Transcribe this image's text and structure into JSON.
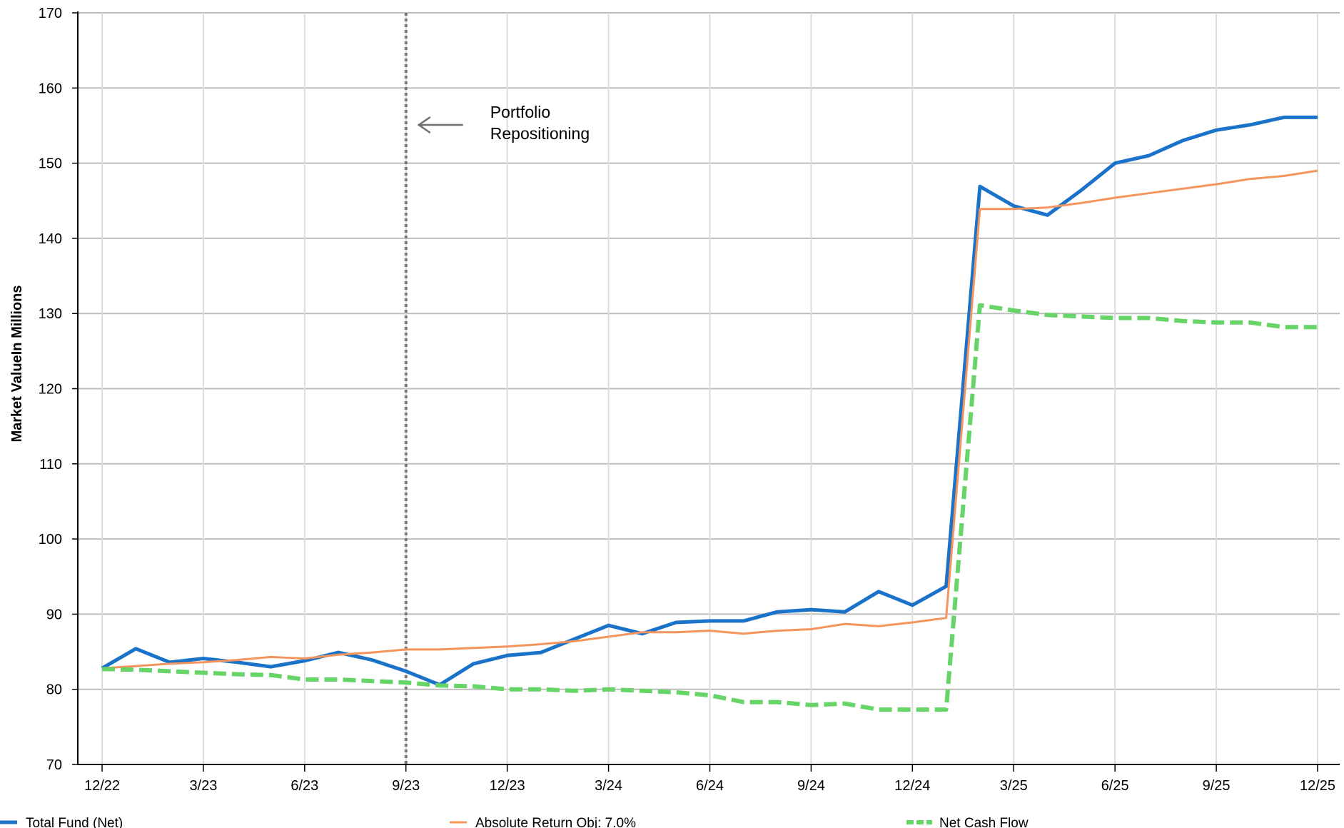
{
  "chart_data": {
    "type": "line",
    "title": "",
    "xlabel": "",
    "ylabel": "Market ValueIn Millions",
    "ylim": [
      70,
      170
    ],
    "yticks": [
      "70",
      "80",
      "90",
      "100",
      "110",
      "120",
      "130",
      "140",
      "150",
      "160",
      "170"
    ],
    "x_count": 37,
    "xtick_labels": [
      {
        "index": 0,
        "label": "12/22"
      },
      {
        "index": 3,
        "label": "3/23"
      },
      {
        "index": 6,
        "label": "6/23"
      },
      {
        "index": 9,
        "label": "9/23"
      },
      {
        "index": 12,
        "label": "12/23"
      },
      {
        "index": 15,
        "label": "3/24"
      },
      {
        "index": 18,
        "label": "6/24"
      },
      {
        "index": 21,
        "label": "9/24"
      },
      {
        "index": 24,
        "label": "12/24"
      },
      {
        "index": 27,
        "label": "3/25"
      },
      {
        "index": 30,
        "label": "6/25"
      },
      {
        "index": 33,
        "label": "9/25"
      },
      {
        "index": 36,
        "label": "12/25"
      }
    ],
    "grid": true,
    "legend_position": "bottom",
    "series": [
      {
        "name": "Total Fund (Net)",
        "color": "#1a73c9",
        "style": "solid",
        "values": [
          82.8,
          85.4,
          83.6,
          84.1,
          83.6,
          83.0,
          83.8,
          84.9,
          83.9,
          82.4,
          80.6,
          83.4,
          84.5,
          84.9,
          86.7,
          88.5,
          87.4,
          88.9,
          89.1,
          89.1,
          90.3,
          90.6,
          90.3,
          93.0,
          91.2,
          93.7,
          146.9,
          144.3,
          143.1,
          146.4,
          150.0,
          151.0,
          153.0,
          154.4,
          155.1,
          156.1,
          156.1
        ]
      },
      {
        "name": "Absolute Return Obj: 7.0%",
        "color": "#f4955d",
        "style": "solid",
        "values": [
          82.8,
          83.1,
          83.4,
          83.6,
          83.9,
          84.3,
          84.1,
          84.6,
          84.9,
          85.3,
          85.3,
          85.5,
          85.7,
          86.0,
          86.4,
          87.0,
          87.6,
          87.6,
          87.8,
          87.4,
          87.8,
          88.0,
          88.7,
          88.4,
          88.9,
          89.5,
          143.9,
          143.9,
          144.1,
          144.7,
          145.4,
          146.0,
          146.6,
          147.2,
          147.9,
          148.3,
          149.0
        ]
      },
      {
        "name": "Net Cash Flow",
        "color": "#66d466",
        "style": "dashed",
        "values": [
          82.7,
          82.6,
          82.4,
          82.2,
          82.0,
          81.9,
          81.3,
          81.3,
          81.1,
          80.9,
          80.5,
          80.4,
          80.0,
          80.0,
          79.8,
          80.0,
          79.8,
          79.6,
          79.2,
          78.3,
          78.3,
          77.9,
          78.1,
          77.3,
          77.3,
          77.3,
          131.1,
          130.4,
          129.8,
          129.6,
          129.4,
          129.4,
          129.0,
          128.8,
          128.8,
          128.2,
          128.2
        ]
      }
    ],
    "annotations": [
      {
        "x_index": 9,
        "lines": [
          "Portfolio",
          "Repositioning"
        ],
        "arrow": "left"
      }
    ]
  }
}
